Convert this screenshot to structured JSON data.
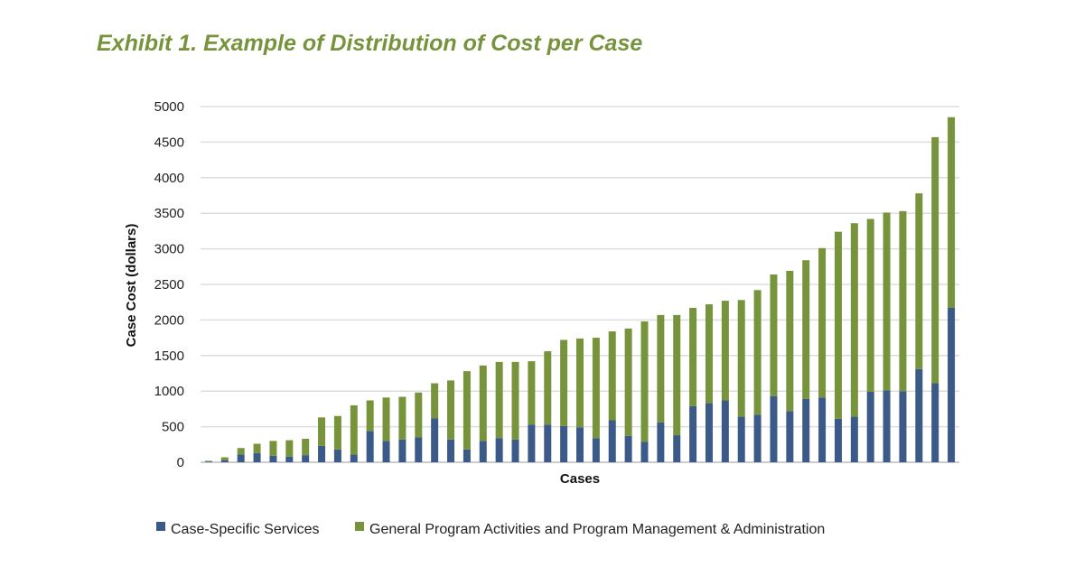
{
  "chart_data": {
    "type": "bar",
    "stacked": true,
    "title": "Exhibit 1. Example of Distribution of Cost per Case",
    "xlabel": "Cases",
    "ylabel": "Case Cost (dollars)",
    "ylim": [
      0,
      5000
    ],
    "yticks": [
      "0",
      "500",
      "1000",
      "1500",
      "2000",
      "2500",
      "3000",
      "3500",
      "4000",
      "4500",
      "5000"
    ],
    "grid": true,
    "legend_position": "bottom",
    "colors": {
      "case_specific": "#3b5a87",
      "general": "#77933c",
      "title": "#77933c"
    },
    "series": [
      {
        "name": "Case-Specific Services",
        "values": [
          10,
          30,
          110,
          130,
          90,
          80,
          100,
          230,
          180,
          110,
          440,
          300,
          320,
          350,
          620,
          320,
          180,
          300,
          340,
          320,
          530,
          530,
          510,
          490,
          340,
          590,
          370,
          290,
          560,
          380,
          790,
          830,
          870,
          640,
          670,
          930,
          720,
          890,
          910,
          610,
          640,
          990,
          1010,
          1000,
          1310,
          1110,
          2170
        ]
      },
      {
        "name": "General Program Activities and Program Management & Administration",
        "values": [
          10,
          40,
          90,
          130,
          210,
          230,
          230,
          400,
          470,
          690,
          430,
          610,
          600,
          630,
          490,
          830,
          1100,
          1060,
          1070,
          1090,
          890,
          1030,
          1210,
          1250,
          1410,
          1250,
          1510,
          1690,
          1510,
          1690,
          1380,
          1390,
          1400,
          1640,
          1750,
          1710,
          1970,
          1950,
          2100,
          2630,
          2720,
          2430,
          2500,
          2530,
          2470,
          3460,
          2680
        ]
      }
    ]
  }
}
